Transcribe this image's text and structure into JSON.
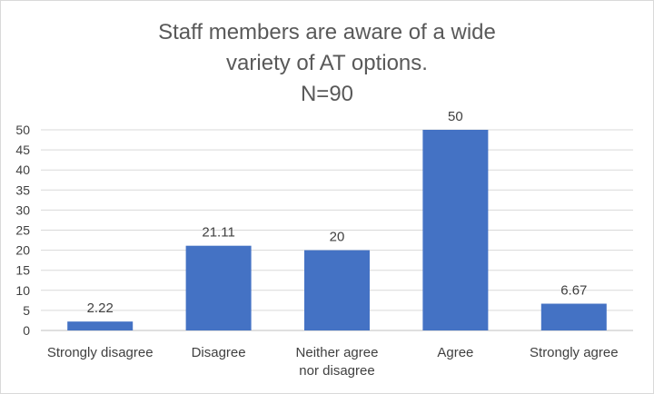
{
  "colors": {
    "bar": "#4472c4",
    "grid": "#d9d9d9",
    "axis": "#bfbfbf",
    "text": "#404040",
    "title": "#595959"
  },
  "chart_data": {
    "type": "bar",
    "title_lines": [
      "Staff members are aware of a wide",
      "variety of AT options.",
      "N=90"
    ],
    "categories": [
      [
        "Strongly disagree"
      ],
      [
        "Disagree"
      ],
      [
        "Neither agree",
        "nor disagree"
      ],
      [
        "Agree"
      ],
      [
        "Strongly agree"
      ]
    ],
    "values": [
      2.22,
      21.11,
      20,
      50,
      6.67
    ],
    "data_labels": [
      "2.22",
      "21.11",
      "20",
      "50",
      "6.67"
    ],
    "xlabel": "",
    "ylabel": "",
    "ylim": [
      0,
      50
    ],
    "yticks": [
      0,
      5,
      10,
      15,
      20,
      25,
      30,
      35,
      40,
      45,
      50
    ],
    "grid": true,
    "legend": "none"
  }
}
